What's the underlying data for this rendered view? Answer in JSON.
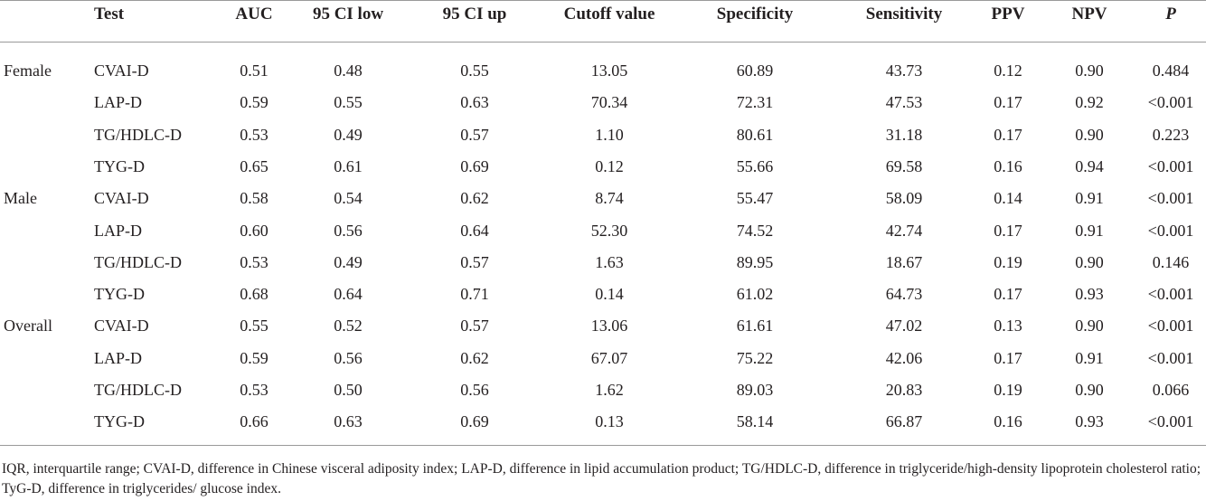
{
  "table": {
    "headers": [
      "Test",
      "AUC",
      "95 CI low",
      "95 CI up",
      "Cutoff value",
      "Specificity",
      "Sensitivity",
      "PPV",
      "NPV",
      "P"
    ],
    "rows": [
      {
        "group": "Female",
        "test": "CVAI-D",
        "auc": "0.51",
        "ci_low": "0.48",
        "ci_up": "0.55",
        "cutoff": "13.05",
        "spec": "60.89",
        "sens": "43.73",
        "ppv": "0.12",
        "npv": "0.90",
        "p": "0.484"
      },
      {
        "group": "",
        "test": "LAP-D",
        "auc": "0.59",
        "ci_low": "0.55",
        "ci_up": "0.63",
        "cutoff": "70.34",
        "spec": "72.31",
        "sens": "47.53",
        "ppv": "0.17",
        "npv": "0.92",
        "p": "<0.001"
      },
      {
        "group": "",
        "test": "TG/HDLC-D",
        "auc": "0.53",
        "ci_low": "0.49",
        "ci_up": "0.57",
        "cutoff": "1.10",
        "spec": "80.61",
        "sens": "31.18",
        "ppv": "0.17",
        "npv": "0.90",
        "p": "0.223"
      },
      {
        "group": "",
        "test": "TYG-D",
        "auc": "0.65",
        "ci_low": "0.61",
        "ci_up": "0.69",
        "cutoff": "0.12",
        "spec": "55.66",
        "sens": "69.58",
        "ppv": "0.16",
        "npv": "0.94",
        "p": "<0.001"
      },
      {
        "group": "Male",
        "test": "CVAI-D",
        "auc": "0.58",
        "ci_low": "0.54",
        "ci_up": "0.62",
        "cutoff": "8.74",
        "spec": "55.47",
        "sens": "58.09",
        "ppv": "0.14",
        "npv": "0.91",
        "p": "<0.001"
      },
      {
        "group": "",
        "test": "LAP-D",
        "auc": "0.60",
        "ci_low": "0.56",
        "ci_up": "0.64",
        "cutoff": "52.30",
        "spec": "74.52",
        "sens": "42.74",
        "ppv": "0.17",
        "npv": "0.91",
        "p": "<0.001"
      },
      {
        "group": "",
        "test": "TG/HDLC-D",
        "auc": "0.53",
        "ci_low": "0.49",
        "ci_up": "0.57",
        "cutoff": "1.63",
        "spec": "89.95",
        "sens": "18.67",
        "ppv": "0.19",
        "npv": "0.90",
        "p": "0.146"
      },
      {
        "group": "",
        "test": "TYG-D",
        "auc": "0.68",
        "ci_low": "0.64",
        "ci_up": "0.71",
        "cutoff": "0.14",
        "spec": "61.02",
        "sens": "64.73",
        "ppv": "0.17",
        "npv": "0.93",
        "p": "<0.001"
      },
      {
        "group": "Overall",
        "test": "CVAI-D",
        "auc": "0.55",
        "ci_low": "0.52",
        "ci_up": "0.57",
        "cutoff": "13.06",
        "spec": "61.61",
        "sens": "47.02",
        "ppv": "0.13",
        "npv": "0.90",
        "p": "<0.001"
      },
      {
        "group": "",
        "test": "LAP-D",
        "auc": "0.59",
        "ci_low": "0.56",
        "ci_up": "0.62",
        "cutoff": "67.07",
        "spec": "75.22",
        "sens": "42.06",
        "ppv": "0.17",
        "npv": "0.91",
        "p": "<0.001"
      },
      {
        "group": "",
        "test": "TG/HDLC-D",
        "auc": "0.53",
        "ci_low": "0.50",
        "ci_up": "0.56",
        "cutoff": "1.62",
        "spec": "89.03",
        "sens": "20.83",
        "ppv": "0.19",
        "npv": "0.90",
        "p": "0.066"
      },
      {
        "group": "",
        "test": "TYG-D",
        "auc": "0.66",
        "ci_low": "0.63",
        "ci_up": "0.69",
        "cutoff": "0.13",
        "spec": "58.14",
        "sens": "66.87",
        "ppv": "0.16",
        "npv": "0.93",
        "p": "<0.001"
      }
    ],
    "footnote": "IQR, interquartile range; CVAI-D, difference in Chinese visceral adiposity index; LAP-D, difference in lipid accumulation product; TG/HDLC-D, difference in triglyceride/high-density lipoprotein cholesterol ratio; TyG-D, difference in triglycerides/ glucose index."
  }
}
